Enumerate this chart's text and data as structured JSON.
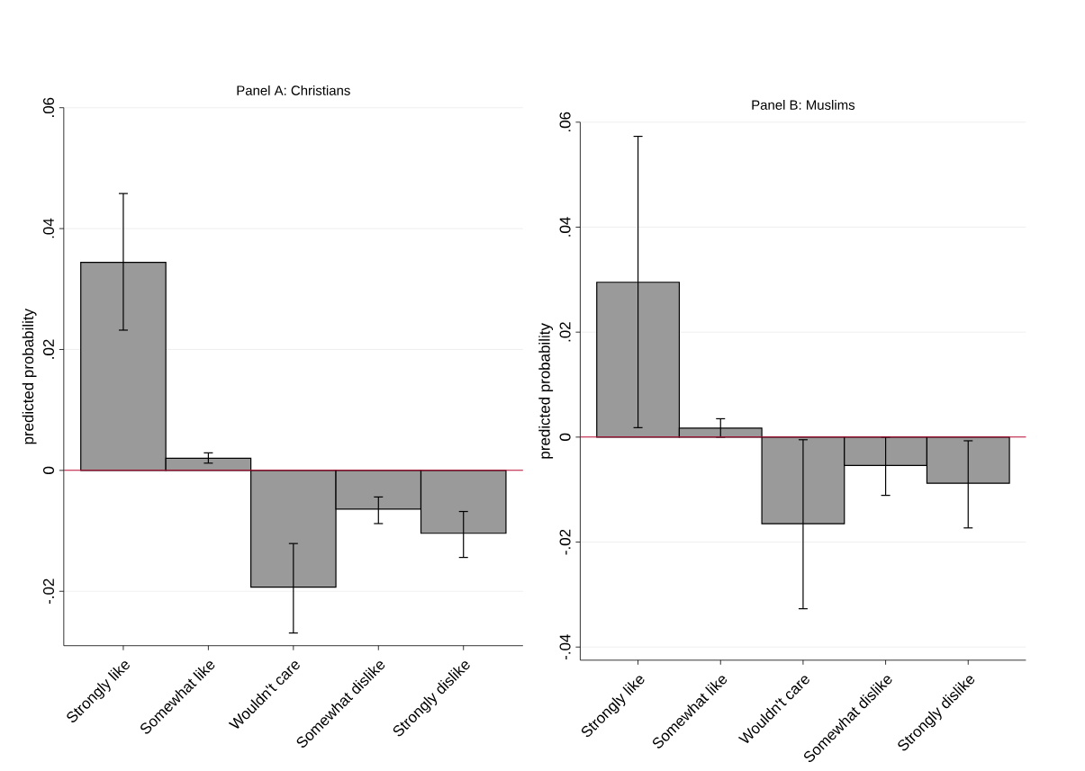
{
  "chart_data": [
    {
      "type": "bar",
      "title": "Panel A: Christians",
      "ylabel": "predicted probability",
      "categories": [
        "Strongly like",
        "Somewhat like",
        "Wouldn't care",
        "Somewhat dislike",
        "Strongly dislike"
      ],
      "values": [
        0.0344,
        0.002,
        -0.0193,
        -0.0064,
        -0.0104
      ],
      "color": "#9a9a9a",
      "errors": [
        [
          0.0232,
          0.0458
        ],
        [
          0.0012,
          0.0029
        ],
        [
          -0.0269,
          -0.0121
        ],
        [
          -0.0088,
          -0.0044
        ],
        [
          -0.0144,
          -0.0068
        ]
      ],
      "ylim": [
        -0.029,
        0.06
      ],
      "yticks": [
        {
          "value": -0.02,
          "label": "-.02"
        },
        0,
        {
          "value": 0.02,
          "label": ".02"
        },
        {
          "value": 0.04,
          "label": ".04"
        },
        {
          "value": 0.06,
          "label": ".06"
        }
      ],
      "grid": "y",
      "ref_lines": [
        {
          "axis": "y",
          "value": 0,
          "color": "#c0103a"
        }
      ]
    },
    {
      "type": "bar",
      "title": "Panel B: Muslims",
      "ylabel": "predicted probability",
      "categories": [
        "Strongly like",
        "Somewhat like",
        "Wouldn't care",
        "Somewhat dislike",
        "Strongly dislike"
      ],
      "values": [
        0.0295,
        0.0017,
        -0.0165,
        -0.0054,
        -0.0088
      ],
      "color": "#9a9a9a",
      "errors": [
        [
          0.0018,
          0.0573
        ],
        [
          0.0,
          0.0035
        ],
        [
          -0.0327,
          -0.0005
        ],
        [
          -0.0111,
          0.0
        ],
        [
          -0.0173,
          -0.0007
        ]
      ],
      "ylim": [
        -0.0425,
        0.06
      ],
      "yticks": [
        {
          "value": -0.04,
          "label": "-.04"
        },
        {
          "value": -0.02,
          "label": "-.02"
        },
        0,
        {
          "value": 0.02,
          "label": ".02"
        },
        {
          "value": 0.04,
          "label": ".04"
        },
        {
          "value": 0.06,
          "label": ".06"
        }
      ],
      "grid": "y",
      "ref_lines": [
        {
          "axis": "y",
          "value": 0,
          "color": "#c0103a"
        }
      ]
    }
  ]
}
